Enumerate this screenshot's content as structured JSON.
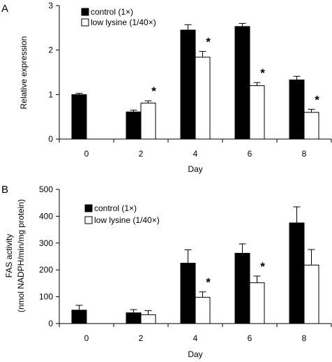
{
  "chart_data": [
    {
      "type": "bar",
      "panel_label": "A",
      "xlabel": "Day",
      "ylabel": "Relative expression",
      "ylabel_lines": [
        "Relative expression"
      ],
      "ylim": [
        0,
        3
      ],
      "yticks": [
        0,
        1,
        2,
        3
      ],
      "categories": [
        "0",
        "2",
        "4",
        "6",
        "8"
      ],
      "legend_position": "top-left",
      "series": [
        {
          "name": "control (1×)",
          "color": "#000000",
          "values": [
            1.0,
            0.61,
            2.45,
            2.53,
            1.33
          ],
          "errors": [
            0.03,
            0.04,
            0.12,
            0.07,
            0.08
          ]
        },
        {
          "name": "low lysine (1/40×)",
          "color": "#ffffff",
          "values": [
            null,
            0.81,
            1.84,
            1.2,
            0.6
          ],
          "errors": [
            null,
            0.05,
            0.13,
            0.07,
            0.07
          ]
        }
      ],
      "significance": [
        {
          "category": "2",
          "series": 1,
          "label": "*"
        },
        {
          "category": "4",
          "series": 1,
          "label": "*"
        },
        {
          "category": "6",
          "series": 1,
          "label": "*"
        },
        {
          "category": "8",
          "series": 1,
          "label": "*"
        }
      ]
    },
    {
      "type": "bar",
      "panel_label": "B",
      "xlabel": "Day",
      "ylabel": "FAS activity (nmol NADPH/min/mg protein)",
      "ylabel_lines": [
        "FAS activity",
        "(nmol NADPH/min/mg protein)"
      ],
      "ylim": [
        0,
        500
      ],
      "yticks": [
        0,
        100,
        200,
        300,
        400,
        500
      ],
      "categories": [
        "0",
        "2",
        "4",
        "6",
        "8"
      ],
      "legend_position": "top-left",
      "series": [
        {
          "name": "control (1×)",
          "color": "#000000",
          "values": [
            50,
            40,
            225,
            262,
            375
          ],
          "errors": [
            18,
            12,
            50,
            35,
            60
          ]
        },
        {
          "name": "low lysine (1/40×)",
          "color": "#ffffff",
          "values": [
            null,
            33,
            98,
            152,
            218
          ],
          "errors": [
            null,
            15,
            20,
            25,
            58
          ]
        }
      ],
      "significance": [
        {
          "category": "4",
          "series": 1,
          "label": "*"
        },
        {
          "category": "6",
          "series": 1,
          "label": "*"
        }
      ]
    }
  ]
}
